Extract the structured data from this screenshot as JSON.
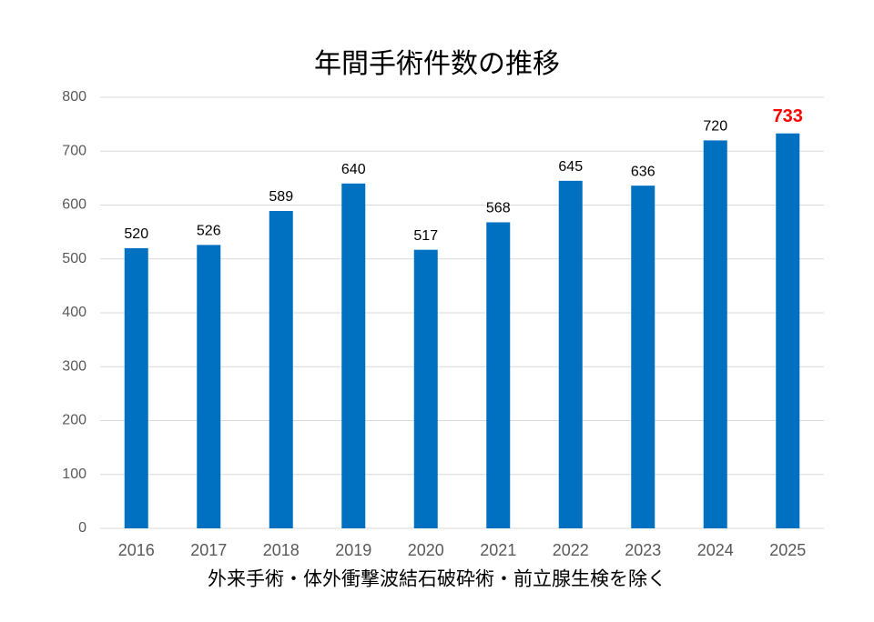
{
  "chart_data": {
    "type": "bar",
    "title": "年間手術件数の推移",
    "x_label": "外来手術・体外衝撃波結石破砕術・前立腺生検を除く",
    "categories": [
      "2016",
      "2017",
      "2018",
      "2019",
      "2020",
      "2021",
      "2022",
      "2023",
      "2024",
      "2025"
    ],
    "values": [
      520,
      526,
      589,
      640,
      517,
      568,
      645,
      636,
      720,
      733
    ],
    "color": "#0070c0",
    "value_label_colors": [
      "#000000",
      "#000000",
      "#000000",
      "#000000",
      "#000000",
      "#000000",
      "#000000",
      "#000000",
      "#000000",
      "#ff0000"
    ],
    "ylim": [
      0,
      800
    ],
    "yticks": [
      0,
      100,
      200,
      300,
      400,
      500,
      600,
      700,
      800
    ],
    "grid": true
  }
}
